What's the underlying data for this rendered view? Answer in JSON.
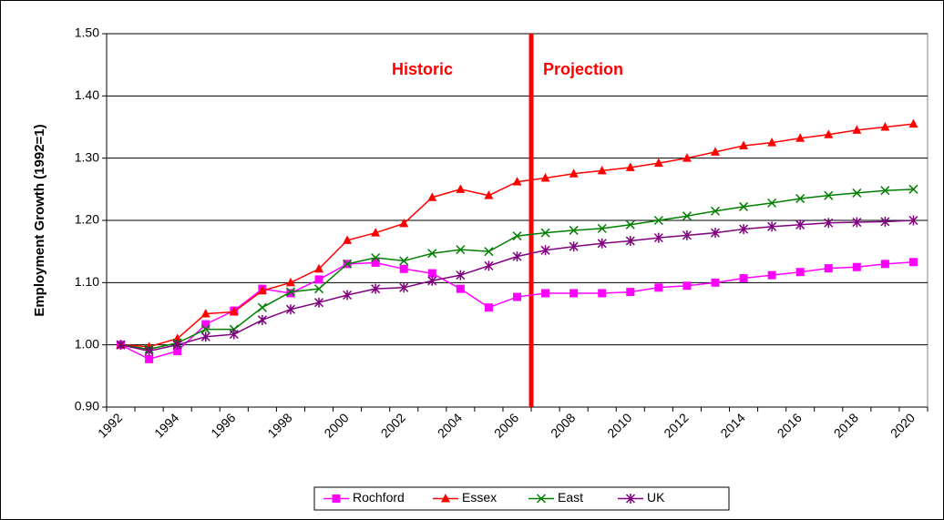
{
  "chart_data": {
    "type": "line",
    "y_label": "Employment Growth (1992=1)",
    "annotations": [
      "Historic",
      "Projection"
    ],
    "categories": [
      "1992",
      null,
      "1994",
      null,
      "1996",
      null,
      "1998",
      null,
      "2000",
      null,
      "2002",
      null,
      "2004",
      null,
      "2006",
      null,
      "2008",
      null,
      "2010",
      null,
      "2012",
      null,
      "2014",
      null,
      "2016",
      null,
      "2018",
      null,
      "2020"
    ],
    "series": [
      {
        "name": "Rochford",
        "color": "#ff00ff",
        "marker": "square",
        "values": [
          1.0,
          0.977,
          0.99,
          1.033,
          1.055,
          1.09,
          1.083,
          1.105,
          1.13,
          1.132,
          1.122,
          1.115,
          1.09,
          1.06,
          1.077,
          1.083,
          1.083,
          1.083,
          1.085,
          1.092,
          1.095,
          1.1,
          1.107,
          1.112,
          1.117,
          1.123,
          1.125,
          1.13,
          1.133
        ]
      },
      {
        "name": "Essex",
        "color": "#ff0000",
        "marker": "triangle",
        "values": [
          1.0,
          0.997,
          1.01,
          1.05,
          1.053,
          1.087,
          1.1,
          1.122,
          1.168,
          1.18,
          1.195,
          1.237,
          1.25,
          1.24,
          1.262,
          1.268,
          1.275,
          1.28,
          1.285,
          1.292,
          1.3,
          1.31,
          1.32,
          1.325,
          1.332,
          1.338,
          1.345,
          1.35,
          1.355
        ]
      },
      {
        "name": "East",
        "color": "#008000",
        "marker": "x",
        "values": [
          1.0,
          0.993,
          1.003,
          1.025,
          1.025,
          1.06,
          1.085,
          1.09,
          1.13,
          1.14,
          1.135,
          1.147,
          1.153,
          1.15,
          1.175,
          1.18,
          1.184,
          1.187,
          1.193,
          1.2,
          1.207,
          1.215,
          1.222,
          1.228,
          1.235,
          1.24,
          1.244,
          1.248,
          1.25
        ]
      },
      {
        "name": "UK",
        "color": "#800080",
        "marker": "asterisk",
        "values": [
          1.0,
          0.99,
          1.0,
          1.013,
          1.017,
          1.04,
          1.057,
          1.068,
          1.08,
          1.09,
          1.092,
          1.103,
          1.112,
          1.127,
          1.142,
          1.152,
          1.158,
          1.163,
          1.167,
          1.172,
          1.176,
          1.18,
          1.186,
          1.19,
          1.193,
          1.196,
          1.197,
          1.198,
          1.2
        ]
      }
    ],
    "ylim": [
      0.9,
      1.5
    ],
    "yticks": [
      {
        "value": 0.9,
        "label": "0.90"
      },
      {
        "value": 1.0,
        "label": "1.00"
      },
      {
        "value": 1.1,
        "label": "1.10"
      },
      {
        "value": 1.2,
        "label": "1.20"
      },
      {
        "value": 1.3,
        "label": "1.30"
      },
      {
        "value": 1.4,
        "label": "1.40"
      },
      {
        "value": 1.5,
        "label": "1.50"
      }
    ],
    "grid": true,
    "legend": "bottom"
  }
}
